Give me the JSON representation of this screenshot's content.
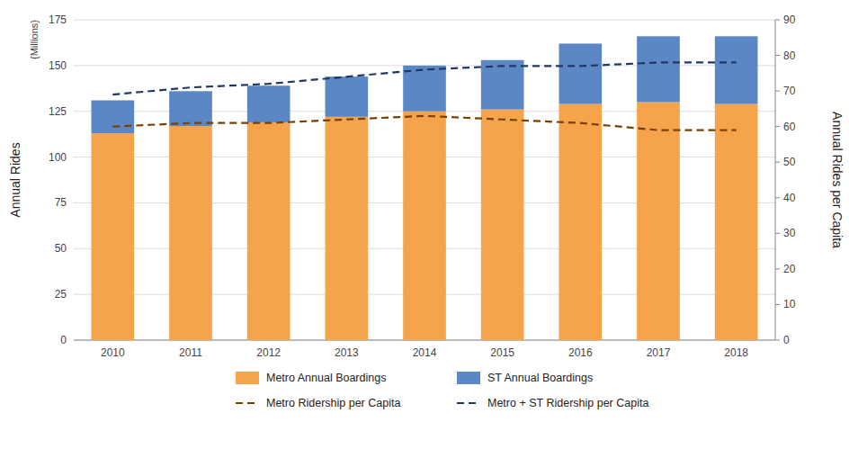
{
  "chart_data": {
    "type": "bar",
    "stacked": true,
    "categories": [
      "2010",
      "2011",
      "2012",
      "2013",
      "2014",
      "2015",
      "2016",
      "2017",
      "2018"
    ],
    "series": [
      {
        "name": "Metro Annual Boardings",
        "type": "bar",
        "color": "#F5A44B",
        "values": [
          113,
          117,
          119,
          122,
          125,
          126,
          129,
          130,
          129
        ]
      },
      {
        "name": "ST Annual Boardings",
        "type": "bar",
        "color": "#5B87C5",
        "values": [
          18,
          19,
          20,
          22,
          25,
          27,
          33,
          36,
          37
        ]
      },
      {
        "name": "Metro Ridership per Capita",
        "type": "line",
        "axis": "y2",
        "line_style": "dashed",
        "color": "#7B3F00",
        "values": [
          60,
          61,
          61,
          62,
          63,
          62,
          61,
          59,
          59
        ]
      },
      {
        "name": "Metro + ST Ridership per Capita",
        "type": "line",
        "axis": "y2",
        "line_style": "dashed",
        "color": "#1F3864",
        "values": [
          69,
          71,
          72,
          74,
          76,
          77,
          77,
          78,
          78
        ]
      }
    ],
    "y_label": "Annual Rides",
    "y2_label": "Annual Rides per Capita",
    "annotations": [
      "{Millions}"
    ],
    "ylim": [
      0,
      175
    ],
    "yticks": [
      0,
      25,
      50,
      75,
      100,
      125,
      150,
      175
    ],
    "y2lim": [
      0,
      90
    ],
    "y2ticks": [
      0,
      10,
      20,
      30,
      40,
      50,
      60,
      70,
      80,
      90
    ],
    "grid": true,
    "legend": "bottom"
  }
}
